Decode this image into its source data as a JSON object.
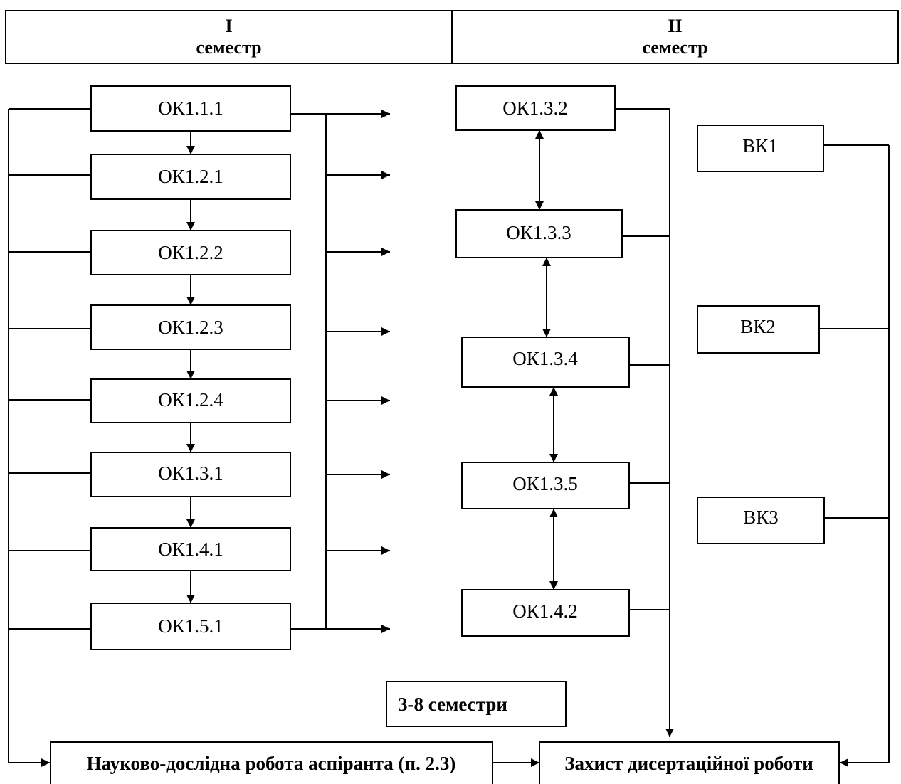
{
  "header": {
    "col1": {
      "roman": "I",
      "label": "семестр"
    },
    "col2": {
      "roman": "II",
      "label": "семестр"
    }
  },
  "semester1_courses": [
    "ОК1.1.1",
    "ОК1.2.1",
    "ОК1.2.2",
    "ОК1.2.3",
    "ОК1.2.4",
    "ОК1.3.1",
    "ОК1.4.1",
    "ОК1.5.1"
  ],
  "semester2_courses": [
    "ОК1.3.2",
    "ОК1.3.3",
    "ОК1.3.4",
    "ОК1.3.5",
    "ОК1.4.2"
  ],
  "elective_courses": [
    "ВК1",
    "ВК2",
    "ВК3"
  ],
  "semesters_label": "3-8 семестри",
  "research_box": "Науково-дослідна робота аспіранта (п. 2.3)",
  "defense_box": "Захист дисертаційної роботи"
}
